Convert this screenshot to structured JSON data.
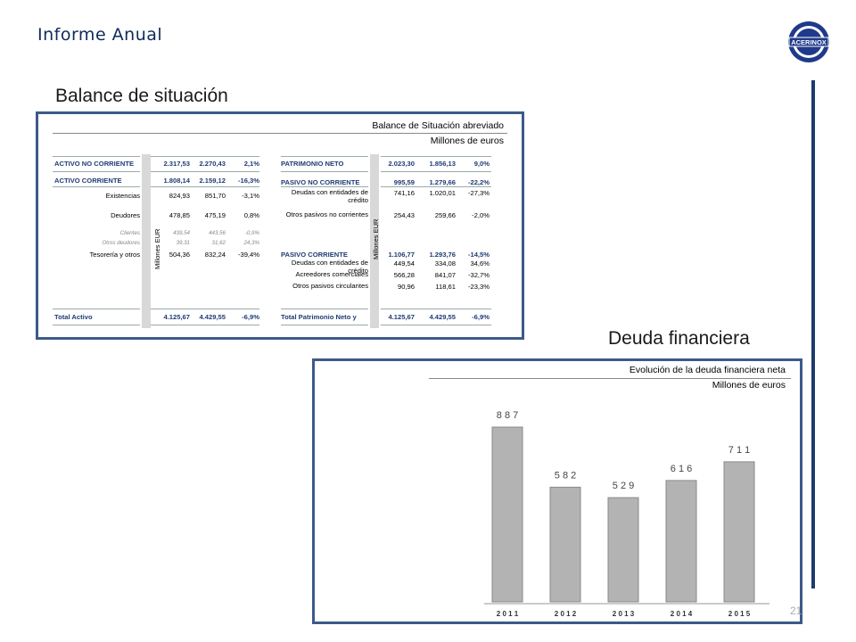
{
  "header": {
    "title": "Informe Anual",
    "logo_text": "ACERINOX"
  },
  "balance": {
    "section_title": "Balance de situación",
    "table_title": "Balance de Situación abreviado",
    "units": "Millones de euros",
    "side_label": "Millones EUR",
    "left_rows": [
      {
        "label": "ACTIVO NO CORRIENTE",
        "v1": "2.317,53",
        "v2": "2.270,43",
        "v3": "2,1%",
        "style": "blue"
      },
      {
        "label": "ACTIVO CORRIENTE",
        "v1": "1.808,14",
        "v2": "2.159,12",
        "v3": "-16,3%",
        "style": "blue"
      },
      {
        "label": "Existencias",
        "v1": "824,93",
        "v2": "851,70",
        "v3": "-3,1%",
        "style": "normal"
      },
      {
        "label": "Deudores",
        "v1": "478,85",
        "v2": "475,19",
        "v3": "0,8%",
        "style": "normal"
      },
      {
        "label": "Clientes",
        "v1": "439,54",
        "v2": "443,56",
        "v3": "-0,9%",
        "style": "sub"
      },
      {
        "label": "Otros deudores",
        "v1": "39,31",
        "v2": "31,62",
        "v3": "24,3%",
        "style": "sub"
      },
      {
        "label": "Tesorería y otros",
        "v1": "504,36",
        "v2": "832,24",
        "v3": "-39,4%",
        "style": "normal"
      },
      {
        "label": "Total Activo",
        "v1": "4.125,67",
        "v2": "4.429,55",
        "v3": "-6,9%",
        "style": "total"
      }
    ],
    "right_rows": [
      {
        "label": "PATRIMONIO NETO",
        "v1": "2.023,30",
        "v2": "1.856,13",
        "v3": "9,0%",
        "style": "blue"
      },
      {
        "label": "PASIVO NO CORRIENTE",
        "v1": "995,59",
        "v2": "1.279,66",
        "v3": "-22,2%",
        "style": "blue"
      },
      {
        "label": "Deudas con entidades de crédito",
        "v1": "741,16",
        "v2": "1.020,01",
        "v3": "-27,3%",
        "style": "normal"
      },
      {
        "label": "Otros pasivos no corrientes",
        "v1": "254,43",
        "v2": "259,66",
        "v3": "-2,0%",
        "style": "normal"
      },
      {
        "label": "PASIVO CORRIENTE",
        "v1": "1.106,77",
        "v2": "1.293,76",
        "v3": "-14,5%",
        "style": "blue"
      },
      {
        "label": "Deudas con entidades de crédito",
        "v1": "449,54",
        "v2": "334,08",
        "v3": "34,6%",
        "style": "normal"
      },
      {
        "label": "Acreedores comerciales",
        "v1": "566,28",
        "v2": "841,07",
        "v3": "-32,7%",
        "style": "normal"
      },
      {
        "label": "Otros pasivos circulantes",
        "v1": "90,96",
        "v2": "118,61",
        "v3": "-23,3%",
        "style": "normal"
      },
      {
        "label": "Total Patrimonio Neto y",
        "v1": "4.125,67",
        "v2": "4.429,55",
        "v3": "-6,9%",
        "style": "total"
      }
    ]
  },
  "deuda": {
    "section_title": "Deuda financiera",
    "chart_title": "Evolución de la deuda financiera neta",
    "units": "Millones de euros"
  },
  "page_number": "21",
  "chart_data": {
    "type": "bar",
    "title": "Evolución de la deuda financiera neta",
    "subtitle": "Millones de euros",
    "categories": [
      "2 0 1 1",
      "2 0 1 2",
      "2 0 1 3",
      "2 0 1 4",
      "2 0 1 5"
    ],
    "values": [
      887,
      582,
      529,
      616,
      711
    ],
    "value_labels": [
      "8 8 7",
      "5 8 2",
      "5 2 9",
      "6 1 6",
      "7 1 1"
    ],
    "ylim": [
      0,
      1000
    ],
    "bar_color": "#b3b3b3",
    "bar_border": "#8a8a8a",
    "grid": false
  }
}
